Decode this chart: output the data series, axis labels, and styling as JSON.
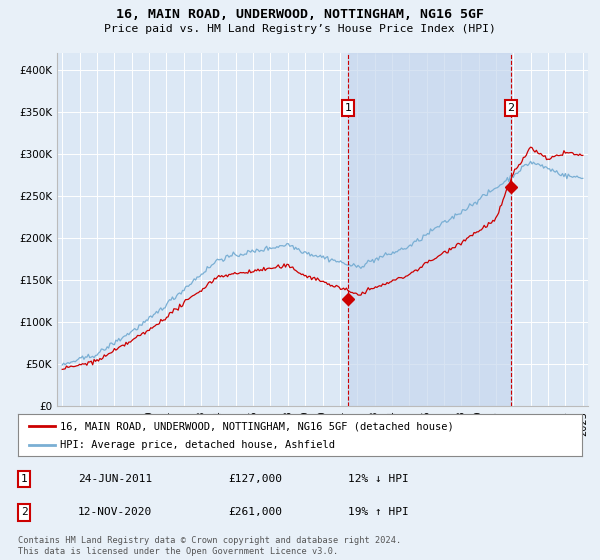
{
  "title": "16, MAIN ROAD, UNDERWOOD, NOTTINGHAM, NG16 5GF",
  "subtitle": "Price paid vs. HM Land Registry’s House Price Index (HPI)",
  "footnote": "Contains HM Land Registry data © Crown copyright and database right 2024.\nThis data is licensed under the Open Government Licence v3.0.",
  "legend_line1": "16, MAIN ROAD, UNDERWOOD, NOTTINGHAM, NG16 5GF (detached house)",
  "legend_line2": "HPI: Average price, detached house, Ashfield",
  "annotation1_label": "1",
  "annotation1_date": "24-JUN-2011",
  "annotation1_price": "£127,000",
  "annotation1_hpi": "12% ↓ HPI",
  "annotation1_year": 2011.48,
  "annotation1_value": 127000,
  "annotation2_label": "2",
  "annotation2_date": "12-NOV-2020",
  "annotation2_price": "£261,000",
  "annotation2_hpi": "19% ↑ HPI",
  "annotation2_year": 2020.87,
  "annotation2_value": 261000,
  "ylim": [
    0,
    420000
  ],
  "xlim_start": 1994.7,
  "xlim_end": 2025.3,
  "background_color": "#e8f0f8",
  "plot_bg_color": "#dce8f5",
  "shade_color": "#c8d8ee",
  "red_color": "#cc0000",
  "blue_color": "#7aafd4",
  "grid_color": "#ffffff",
  "annotation_box_color": "#cc0000",
  "seed": 42
}
